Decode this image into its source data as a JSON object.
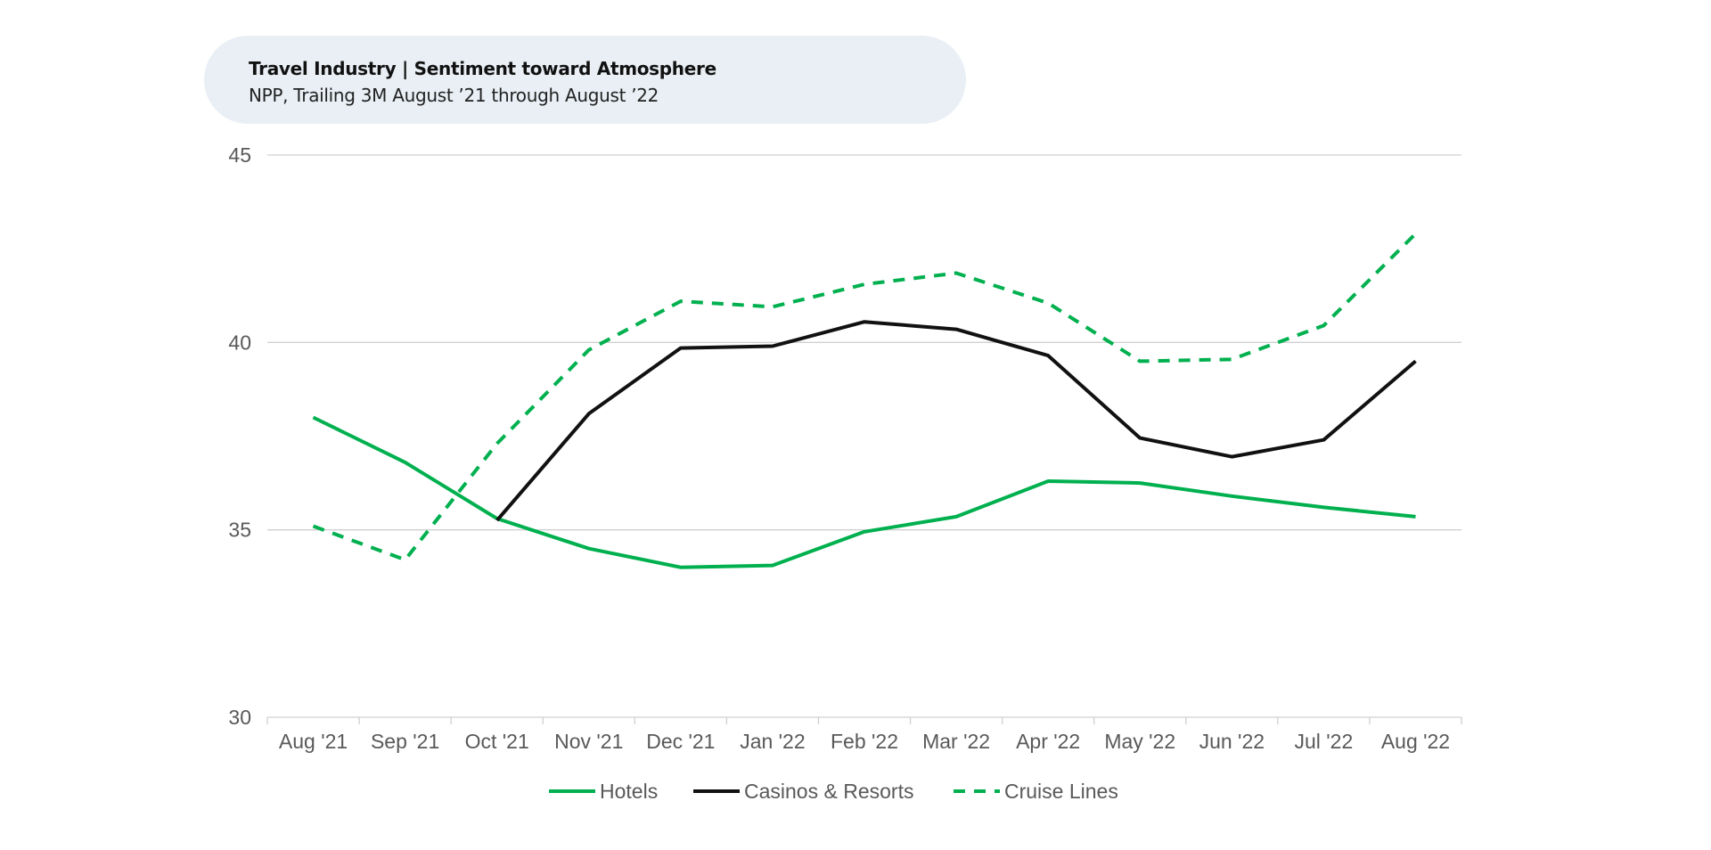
{
  "header": {
    "title": "Travel Industry | Sentiment toward  Atmosphere",
    "subtitle": "NPP, Trailing 3M August ’21 through August ’22"
  },
  "colors": {
    "green": "#00b04f",
    "black": "#111111",
    "grid": "#d0d0d0",
    "axis_text": "#595959"
  },
  "chart_data": {
    "type": "line",
    "categories": [
      "Aug '21",
      "Sep '21",
      "Oct '21",
      "Nov '21",
      "Dec '21",
      "Jan '22",
      "Feb '22",
      "Mar '22",
      "Apr '22",
      "May '22",
      "Jun '22",
      "Jul '22",
      "Aug '22"
    ],
    "ylim": [
      30,
      45
    ],
    "yticks": [
      "30",
      "35",
      "40",
      "45"
    ],
    "grid": true,
    "legend_position": "bottom",
    "series": [
      {
        "name": "Hotels",
        "color": "#00b04f",
        "dash": "solid",
        "values": [
          38.0,
          36.8,
          35.3,
          34.5,
          34.0,
          34.05,
          34.95,
          35.35,
          36.3,
          36.25,
          35.9,
          35.6,
          35.35
        ]
      },
      {
        "name": "Casinos & Resorts",
        "color": "#111111",
        "dash": "solid",
        "values": [
          null,
          null,
          35.25,
          38.1,
          39.85,
          39.9,
          40.55,
          40.35,
          39.65,
          37.45,
          36.95,
          37.4,
          39.5
        ]
      },
      {
        "name": "Cruise Lines",
        "color": "#00b04f",
        "dash": "dashed",
        "values": [
          35.1,
          34.2,
          37.3,
          39.8,
          41.1,
          40.95,
          41.55,
          41.85,
          41.05,
          39.5,
          39.55,
          40.45,
          42.9
        ]
      }
    ]
  }
}
